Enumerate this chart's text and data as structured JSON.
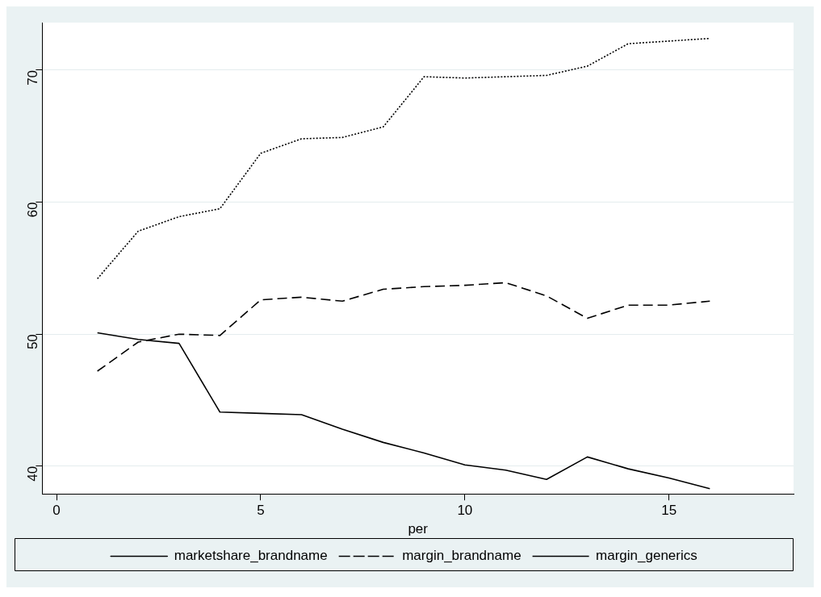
{
  "chart_data": {
    "type": "line",
    "xlabel": "per",
    "x": [
      1,
      2,
      3,
      4,
      5,
      6,
      7,
      8,
      9,
      10,
      11,
      12,
      13,
      14,
      15,
      16
    ],
    "xlim": [
      -0.35,
      18.05
    ],
    "xticks": [
      0,
      5,
      10,
      15
    ],
    "ylim": [
      37.9,
      73.6
    ],
    "yticks": [
      40,
      50,
      60,
      70
    ],
    "grid": "y",
    "legend": "bottom",
    "marker": "none",
    "series": [
      {
        "name": "marketshare_brandname",
        "color": "#000000",
        "line_style": "solid",
        "values": [
          50.1,
          49.6,
          49.3,
          44.1,
          44.0,
          43.9,
          42.8,
          41.8,
          41.0,
          40.1,
          39.7,
          39.0,
          40.7,
          39.8,
          39.1,
          38.3
        ]
      },
      {
        "name": "margin_brandname",
        "color": "#000000",
        "line_style": "dashed",
        "values": [
          47.2,
          49.4,
          50.0,
          49.9,
          52.6,
          52.8,
          52.5,
          53.4,
          53.6,
          53.7,
          53.9,
          52.9,
          51.2,
          52.2,
          52.2,
          52.5
        ]
      },
      {
        "name": "margin_generics",
        "color": "#000000",
        "line_style": "dotted",
        "values": [
          54.2,
          57.8,
          58.9,
          59.5,
          63.7,
          64.8,
          64.9,
          65.7,
          69.5,
          69.4,
          69.5,
          69.6,
          70.3,
          72.0,
          72.2,
          72.4
        ]
      }
    ]
  }
}
